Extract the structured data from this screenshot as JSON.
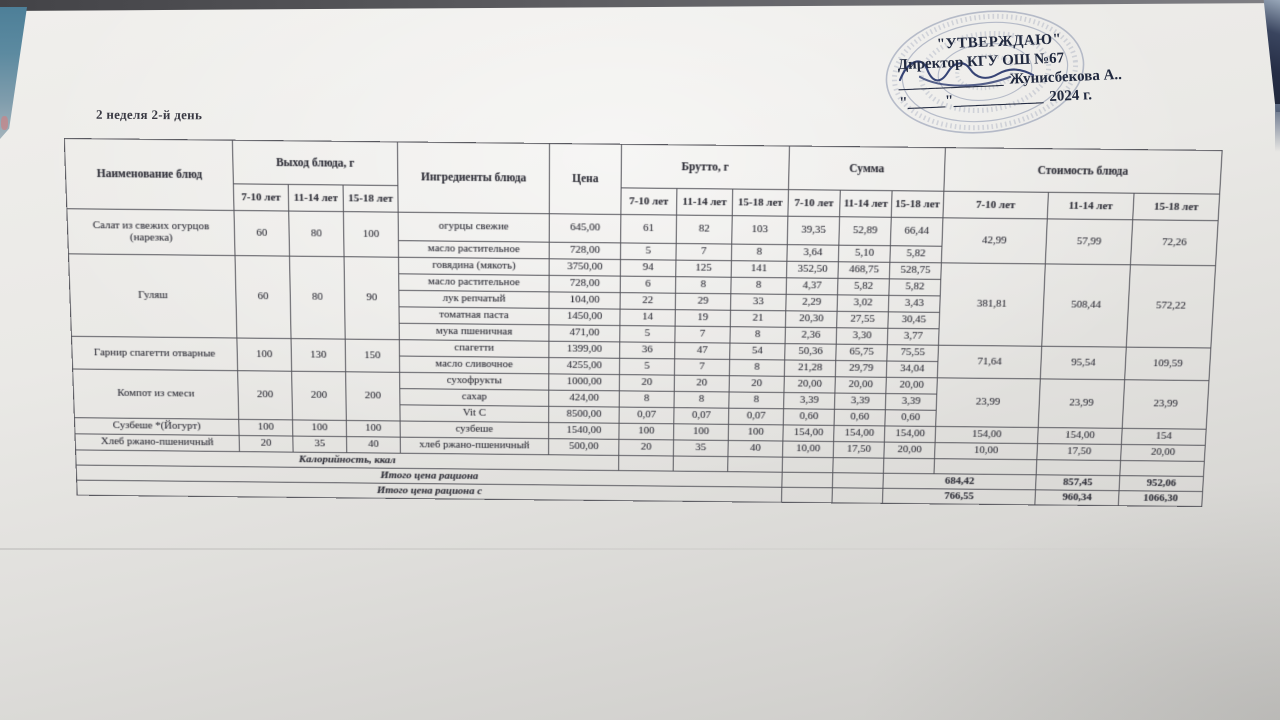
{
  "week_label": "2 неделя 2-й день",
  "approval": {
    "title": "\"УТВЕРЖДАЮ\"",
    "role_line": "Директор КГУ ОШ №67",
    "sig_blank": "______________",
    "name": "Жунисбекова А..",
    "date_blank": "\"_____\"____________",
    "year": "2024 г."
  },
  "colors": {
    "paper": "#ebeae7",
    "ink": "#31313a",
    "approval_ink": "#222a40",
    "stamp": "#7d89a6",
    "blue_object": "#5c8aa0",
    "navy_object": "#252d45"
  },
  "table": {
    "header": {
      "col_dish": "Наименование блюд",
      "col_yield": "Выход блюда, г",
      "col_ingredients": "Ингредиенты блюда",
      "col_price": "Цена",
      "col_brutto": "Брутто, г",
      "col_summa": "Сумма",
      "col_cost": "Стоимость блюда",
      "age_groups": [
        "7-10 лет",
        "11-14 лет",
        "15-18 лет"
      ]
    },
    "groups": [
      {
        "dish": "Салат из свежих огурцов (нарезка)",
        "yield": [
          "60",
          "80",
          "100"
        ],
        "cost": [
          "42,99",
          "57,99",
          "72,26"
        ],
        "ingredients": [
          {
            "name": "огурцы свежие",
            "price": "645,00",
            "brutto": [
              "61",
              "82",
              "103"
            ],
            "summa": [
              "39,35",
              "52,89",
              "66,44"
            ]
          },
          {
            "name": "масло растительное",
            "price": "728,00",
            "brutto": [
              "5",
              "7",
              "8"
            ],
            "summa": [
              "3,64",
              "5,10",
              "5,82"
            ]
          }
        ]
      },
      {
        "dish": "Гуляш",
        "yield": [
          "60",
          "80",
          "90"
        ],
        "cost": [
          "381,81",
          "508,44",
          "572,22"
        ],
        "ingredients": [
          {
            "name": "говядина (мякоть)",
            "price": "3750,00",
            "brutto": [
              "94",
              "125",
              "141"
            ],
            "summa": [
              "352,50",
              "468,75",
              "528,75"
            ]
          },
          {
            "name": "масло растительное",
            "price": "728,00",
            "brutto": [
              "6",
              "8",
              "8"
            ],
            "summa": [
              "4,37",
              "5,82",
              "5,82"
            ]
          },
          {
            "name": "лук репчатый",
            "price": "104,00",
            "brutto": [
              "22",
              "29",
              "33"
            ],
            "summa": [
              "2,29",
              "3,02",
              "3,43"
            ]
          },
          {
            "name": "томатная паста",
            "price": "1450,00",
            "brutto": [
              "14",
              "19",
              "21"
            ],
            "summa": [
              "20,30",
              "27,55",
              "30,45"
            ]
          },
          {
            "name": "мука пшеничная",
            "price": "471,00",
            "brutto": [
              "5",
              "7",
              "8"
            ],
            "summa": [
              "2,36",
              "3,30",
              "3,77"
            ]
          }
        ]
      },
      {
        "dish": "Гарнир  спагетти отварные",
        "yield": [
          "100",
          "130",
          "150"
        ],
        "cost": [
          "71,64",
          "95,54",
          "109,59"
        ],
        "ingredients": [
          {
            "name": "спагетти",
            "price": "1399,00",
            "brutto": [
              "36",
              "47",
              "54"
            ],
            "summa": [
              "50,36",
              "65,75",
              "75,55"
            ]
          },
          {
            "name": "масло сливочное",
            "price": "4255,00",
            "brutto": [
              "5",
              "7",
              "8"
            ],
            "summa": [
              "21,28",
              "29,79",
              "34,04"
            ]
          }
        ]
      },
      {
        "dish": "Компот из смеси",
        "yield": [
          "200",
          "200",
          "200"
        ],
        "cost": [
          "23,99",
          "23,99",
          "23,99"
        ],
        "ingredients": [
          {
            "name": "сухофрукты",
            "price": "1000,00",
            "brutto": [
              "20",
              "20",
              "20"
            ],
            "summa": [
              "20,00",
              "20,00",
              "20,00"
            ]
          },
          {
            "name": "сахар",
            "price": "424,00",
            "brutto": [
              "8",
              "8",
              "8"
            ],
            "summa": [
              "3,39",
              "3,39",
              "3,39"
            ]
          },
          {
            "name": "Vit C",
            "price": "8500,00",
            "brutto": [
              "0,07",
              "0,07",
              "0,07"
            ],
            "summa": [
              "0,60",
              "0,60",
              "0,60"
            ]
          }
        ]
      },
      {
        "dish": "Сузбеше *(Йогурт)",
        "yield": [
          "100",
          "100",
          "100"
        ],
        "cost": [
          "154,00",
          "154,00",
          "154"
        ],
        "ingredients": [
          {
            "name": "сузбеше",
            "price": "1540,00",
            "brutto": [
              "100",
              "100",
              "100"
            ],
            "summa": [
              "154,00",
              "154,00",
              "154,00"
            ]
          }
        ]
      },
      {
        "dish": "Хлеб ржано-пшеничный",
        "yield": [
          "20",
          "35",
          "40"
        ],
        "cost": [
          "10,00",
          "17,50",
          "20,00"
        ],
        "ingredients": [
          {
            "name": "хлеб ржано-пшеничный",
            "price": "500,00",
            "brutto": [
              "20",
              "35",
              "40"
            ],
            "summa": [
              "10,00",
              "17,50",
              "20,00"
            ]
          }
        ]
      }
    ],
    "footer": {
      "calories_label": "Калорийность, ккал",
      "total_label": "Итого цена рациона",
      "total_values": [
        "684,42",
        "857,45",
        "952,06"
      ],
      "total_with_label": "Итого цена рациона с",
      "total_with_values": [
        "766,55",
        "960,34",
        "1066,30"
      ]
    }
  }
}
